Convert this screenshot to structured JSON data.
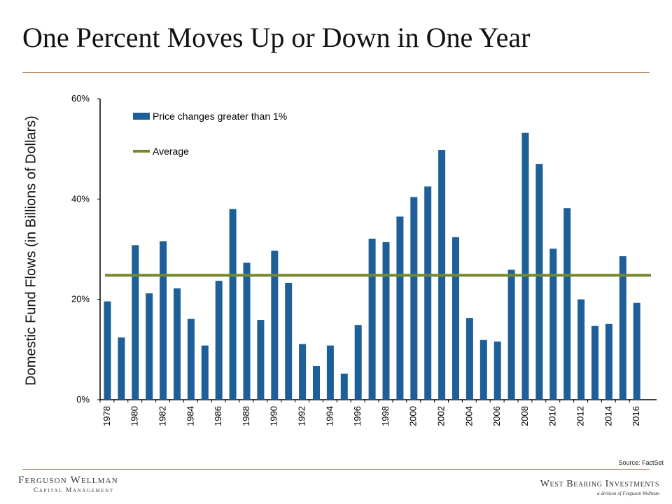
{
  "title": "One Percent Moves Up or Down in One Year",
  "source": "Source: FactSet",
  "logos": {
    "left_line1": "Ferguson Wellman",
    "left_line2": "Capital Management",
    "right_line1": "West Bearing Investments",
    "right_line2": "a division of Ferguson Wellman"
  },
  "colors": {
    "bar": "#1f5f99",
    "average": "#76882d",
    "rule": "#b5876a"
  },
  "chart_data": {
    "type": "bar",
    "xlabel": "",
    "ylabel": "Domestic Fund Flows  (in Billions of Dollars)",
    "ylim": [
      0,
      60
    ],
    "yticks": [
      0,
      20,
      40,
      60
    ],
    "ytick_labels": [
      "0%",
      "20%",
      "40%",
      "60%"
    ],
    "grid": false,
    "legend_position": "top-left",
    "categories": [
      "1978",
      "1979",
      "1980",
      "1981",
      "1982",
      "1983",
      "1984",
      "1985",
      "1986",
      "1987",
      "1988",
      "1989",
      "1990",
      "1991",
      "1992",
      "1993",
      "1994",
      "1995",
      "1996",
      "1997",
      "1998",
      "1999",
      "2000",
      "2001",
      "2002",
      "2003",
      "2004",
      "2005",
      "2006",
      "2007",
      "2008",
      "2009",
      "2010",
      "2011",
      "2012",
      "2013",
      "2014",
      "2015",
      "2016"
    ],
    "xtick_labels": [
      "1978",
      "1980",
      "1982",
      "1984",
      "1986",
      "1988",
      "1990",
      "1992",
      "1994",
      "1996",
      "1998",
      "2000",
      "2002",
      "2004",
      "2006",
      "2008",
      "2010",
      "2012",
      "2014",
      "2016"
    ],
    "series": [
      {
        "name": "Price changes greater than 1%",
        "values": [
          19.6,
          12.4,
          30.8,
          21.2,
          31.6,
          22.2,
          16.1,
          10.8,
          23.7,
          38.0,
          27.3,
          15.9,
          29.7,
          23.3,
          11.1,
          6.7,
          10.8,
          5.2,
          14.9,
          32.1,
          31.4,
          36.5,
          40.4,
          42.5,
          49.8,
          32.4,
          16.3,
          11.9,
          11.6,
          25.9,
          53.2,
          47.0,
          30.1,
          38.2,
          20.0,
          14.7,
          15.1,
          28.6,
          19.3
        ]
      },
      {
        "name": "Average",
        "type": "line",
        "value": 24.8
      }
    ]
  }
}
